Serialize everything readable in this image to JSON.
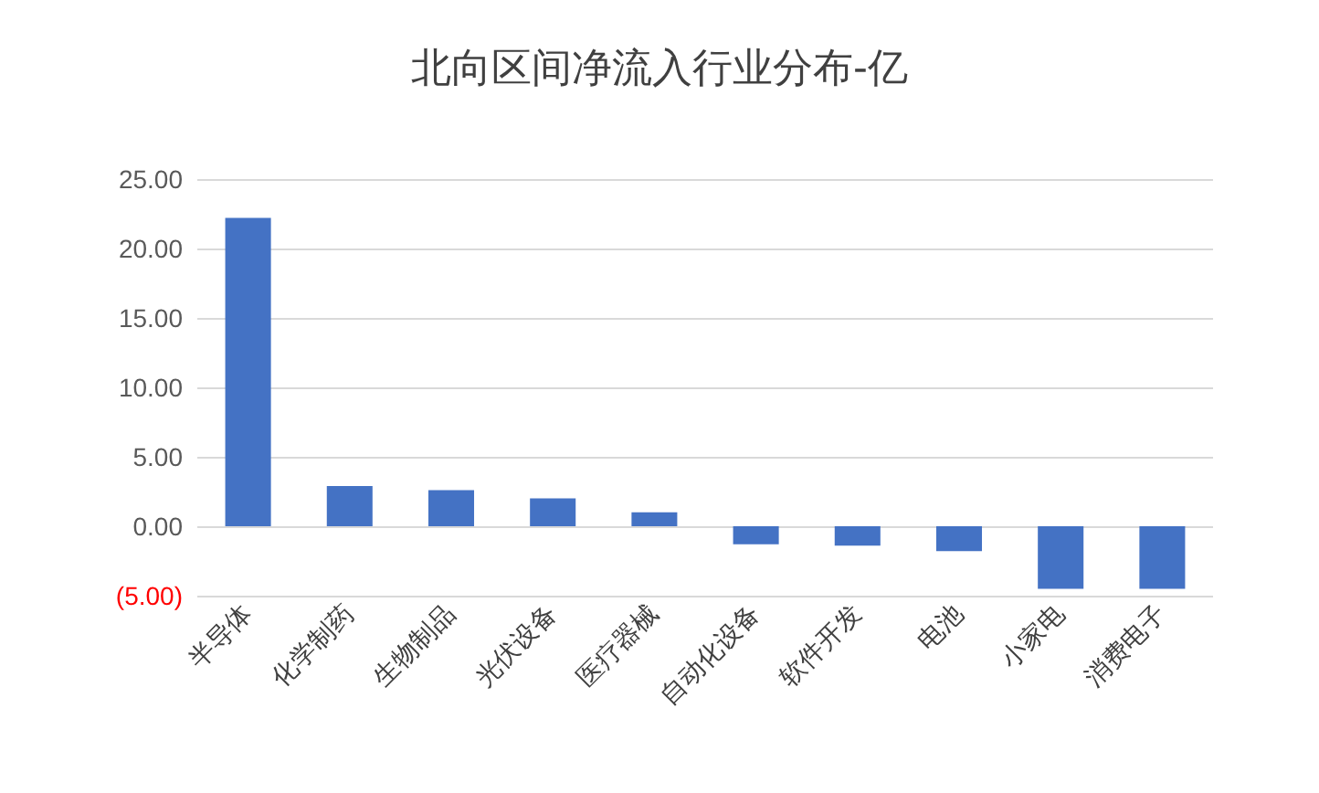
{
  "chart_data": {
    "type": "bar",
    "title": "北向区间净流入行业分布-亿",
    "categories": [
      "半导体",
      "化学制药",
      "生物制品",
      "光伏设备",
      "医疗器械",
      "自动化设备",
      "软件开发",
      "电池",
      "小家电",
      "消费电子"
    ],
    "values": [
      22.2,
      2.9,
      2.6,
      2.0,
      1.0,
      -1.3,
      -1.4,
      -1.8,
      -4.5,
      -4.5
    ],
    "color": "#4472c4",
    "ylim": [
      -5,
      25
    ],
    "yticks": [
      {
        "value": -5,
        "label": "(5.00)"
      },
      {
        "value": 0,
        "label": "0.00"
      },
      {
        "value": 5,
        "label": "5.00"
      },
      {
        "value": 10,
        "label": "10.00"
      },
      {
        "value": 15,
        "label": "15.00"
      },
      {
        "value": 20,
        "label": "20.00"
      },
      {
        "value": 25,
        "label": "25.00"
      }
    ],
    "grid": true
  }
}
